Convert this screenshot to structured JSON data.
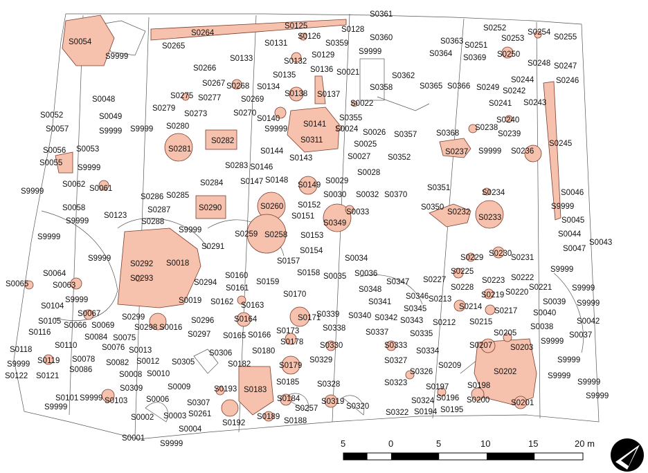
{
  "scale_bar": {
    "labels": [
      "5",
      "0",
      "5",
      "10",
      "15",
      "20 m"
    ]
  },
  "north_arrow": {
    "icon": "north-arrow-icon"
  },
  "colors": {
    "feature_fill": "#f6c1ad",
    "feature_stroke": "#7a3a2a",
    "outline": "#555555"
  },
  "labels": {
    "S0361": "S0361",
    "S0264": "S0264",
    "S0125": "S0125",
    "S0128": "S0128",
    "S0252": "S0252",
    "S0254": "S0254",
    "S0255": "S0255",
    "S0054": "S0054",
    "S0265": "S0265",
    "S0126": "S0126",
    "S0360": "S0360",
    "S0131": "S0131",
    "S0359": "S0359",
    "S0363": "S0363",
    "S0251": "S0251",
    "S0253": "S0253",
    "S9999_a": "S9999",
    "S9999_b": "S9999",
    "S0133": "S0133",
    "S0132": "S0132",
    "S0129": "S0129",
    "S0364": "S0364",
    "S0369": "S0369",
    "S0250": "S0250",
    "S0266": "S0266",
    "S0136": "S0136",
    "S0021": "S0021",
    "S0362": "S0362",
    "S0248": "S0248",
    "S0247": "S0247",
    "S0135": "S0135",
    "S0267": "S0267",
    "S0268": "S0268",
    "S0134": "S0134",
    "S0138": "S0138",
    "S0137": "S0137",
    "S0358": "S0358",
    "S0365": "S0365",
    "S0366": "S0366",
    "S0249": "S0249",
    "S0244": "S0244",
    "S0242": "S0242",
    "S0246": "S0246",
    "S0048": "S0048",
    "S0275": "S0275",
    "S0277": "S0277",
    "S0269": "S0269",
    "S0022": "S0022",
    "S0241": "S0241",
    "S0243": "S0243",
    "S0279": "S0279",
    "S0273": "S0273",
    "S0270": "S0270",
    "S0052": "S0052",
    "S0049": "S0049",
    "S0140": "S0140",
    "S0355": "S0355",
    "S0240": "S0240",
    "S0141": "S0141",
    "S0057": "S0057",
    "S9999_c": "S9999",
    "S9999_d": "S9999",
    "S0280": "S0280",
    "S9999_e": "S9999",
    "S0024": "S0024",
    "S0026": "S0026",
    "S0357": "S0357",
    "S0368": "S0368",
    "S0238": "S0238",
    "S0239": "S0239",
    "S0311": "S0311",
    "S0282": "S0282",
    "S0245": "S0245",
    "S0025": "S0025",
    "S0281": "S0281",
    "S0056": "S0056",
    "S0053": "S0053",
    "S0144": "S0144",
    "S0237": "S0237",
    "S9999_f": "S9999",
    "S0236": "S0236",
    "S0027": "S0027",
    "S0352": "S0352",
    "S0143": "S0143",
    "S0055": "S0055",
    "S0283": "S0283",
    "S0146": "S0146",
    "S9999_g": "S9999",
    "S0028": "S0028",
    "S0062": "S0062",
    "S0148": "S0148",
    "S0029": "S0029",
    "S0284": "S0284",
    "S0147": "S0147",
    "S0149": "S0149",
    "S0061": "S0061",
    "S0351": "S0351",
    "S9999_h": "S9999",
    "S0234": "S0234",
    "S0046": "S0046",
    "S0032": "S0032",
    "S0370": "S0370",
    "S0030": "S0030",
    "S0286": "S0286",
    "S0285": "S0285",
    "S0058": "S0058",
    "S0152": "S0152",
    "S0260": "S0260",
    "S0290": "S0290",
    "S0350": "S0350",
    "S9999_i": "S9999",
    "S0287": "S0287",
    "S0123": "S0123",
    "S0033": "S0033",
    "S0232": "S0232",
    "S0233": "S0233",
    "S9999_j": "S9999",
    "S0151": "S0151",
    "S0288": "S0288",
    "S0349": "S0349",
    "S0045": "S0045",
    "S9999_k": "S9999",
    "S9999_l": "S9999",
    "S0259": "S0259",
    "S0258": "S0258",
    "S0153": "S0153",
    "S0044": "S0044",
    "S0043": "S0043",
    "S0291": "S0291",
    "S0154": "S0154",
    "S0047": "S0047",
    "S9999_m": "S9999",
    "S0229": "S0229",
    "S0230": "S0230",
    "S0292": "S0292",
    "S0018": "S0018",
    "S0157": "S0157",
    "S0034": "S0034",
    "S0231": "S0231",
    "S0225": "S0225",
    "S9999_n": "S9999",
    "S0064": "S0064",
    "S0293": "S0293",
    "S0160": "S0160",
    "S0158": "S0158",
    "S0035": "S0035",
    "S0036": "S0036",
    "S0222": "S0222",
    "S0223": "S0223",
    "S0227": "S0227",
    "S0065": "S0065",
    "S0063": "S0063",
    "S0294": "S0294",
    "S0159": "S0159",
    "S0347": "S0347",
    "S0348": "S0348",
    "S0228": "S0228",
    "S0221": "S0221",
    "S9999_o": "S9999",
    "S0161": "S0161",
    "S0220": "S0220",
    "S0219": "S0219",
    "S0170": "S0170",
    "S0346": "S0346",
    "S0213": "S0213",
    "S0039": "S0039",
    "S9999_p": "S9999",
    "S0104": "S0104",
    "S9999_q": "S9999",
    "S0019": "S0019",
    "S0162": "S0162",
    "S0163": "S0163",
    "S0341": "S0341",
    "S0214": "S0214",
    "S0217": "S0217",
    "S0040": "S0040",
    "S0067": "S0067",
    "S0299": "S0299",
    "S0345": "S0345",
    "S0339": "S0339",
    "S0340": "S0340",
    "S0342": "S0342",
    "S0105": "S0105",
    "S0066": "S0066",
    "S0069": "S0069",
    "S0298": "S0298",
    "S0016": "S0016",
    "S0296": "S0296",
    "S0164": "S0164",
    "S0171": "S0171",
    "S0212": "S0212",
    "S0215": "S0215",
    "S0042": "S0042",
    "S0343": "S0343",
    "S0338": "S0338",
    "S0038": "S0038",
    "S0116": "S0116",
    "S0173": "S0173",
    "S0337": "S0337",
    "S0335": "S0335",
    "S0205": "S0205",
    "S0037": "S0037",
    "S0084": "S0084",
    "S0075": "S0075",
    "S0297": "S0297",
    "S0165": "S0165",
    "S0166": "S0166",
    "S9999_r": "S9999",
    "S0110": "S0110",
    "S0076": "S0076",
    "S0178": "S0178",
    "S0330": "S0330",
    "S0333": "S0333",
    "S0207": "S0207",
    "S0203": "S0203",
    "S0118": "S0118",
    "S0013": "S0013",
    "S0306": "S0306",
    "S0180": "S0180",
    "S0334": "S0334",
    "S0078": "S0078",
    "S0082": "S0082",
    "S0012": "S0012",
    "S0305": "S0305",
    "S0182": "S0182",
    "S0329": "S0329",
    "S0327": "S0327",
    "S9999_s": "S9999",
    "S0119": "S0119",
    "S0179": "S0179",
    "S0209": "S0209",
    "S9999_t": "S9999",
    "S0086": "S0086",
    "S0326": "S0326",
    "S0202": "S0202",
    "S0122": "S0122",
    "S0121": "S0121",
    "S0008": "S0008",
    "S0010": "S0010",
    "S9999_u": "S9999",
    "S0309": "S0309",
    "S0185": "S0185",
    "S0328": "S0328",
    "S0323": "S0323",
    "S0197": "S0197",
    "S0198": "S0198",
    "S9999_v": "S9999",
    "S0009": "S0009",
    "S0193": "S0193",
    "S0183": "S0183",
    "S0101": "S0101",
    "S9999_w": "S9999",
    "S0103": "S0103",
    "S0006": "S0006",
    "S0307": "S0307",
    "S0184": "S0184",
    "S0196": "S0196",
    "S9999_x": "S9999",
    "S0319": "S0319",
    "S0320": "S0320",
    "S0324": "S0324",
    "S0200": "S0200",
    "S9999_y": "S9999",
    "S0257": "S0257",
    "S0195": "S0195",
    "S0201": "S0201",
    "S0261": "S0261",
    "S0322": "S0322",
    "S0194": "S0194",
    "S0002": "S0002",
    "S0003": "S0003",
    "S0192": "S0192",
    "S0189": "S0189",
    "S0188": "S0188",
    "S0004": "S0004",
    "S0001": "S0001",
    "S9999_z": "S9999"
  }
}
